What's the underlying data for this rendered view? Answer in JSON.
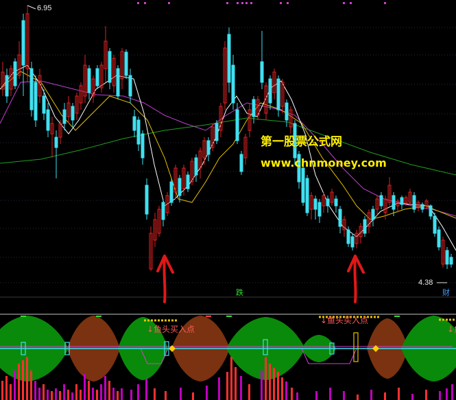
{
  "price_labels": {
    "high": "6.95",
    "low": "4.38"
  },
  "watermark": {
    "title": "第一股票公式网",
    "url": "www.chnmoney.com"
  },
  "signals": {
    "die": "跌",
    "cai": "财"
  },
  "indicator": {
    "buy_point": "↓鱼头买入点",
    "buy_point_short": "↓鱼"
  },
  "colors": {
    "background": "#000000",
    "up_candle": "#e02020",
    "down_candle": "#40e0f0",
    "ma_white": "#ffffff",
    "ma_yellow": "#e8c200",
    "ma_magenta": "#c040d0",
    "ma_green": "#20a020",
    "fish_green": "#0a8a0a",
    "fish_brown": "#7a3210",
    "watermark": "#ffee00",
    "arrow": "#e01818"
  }
}
